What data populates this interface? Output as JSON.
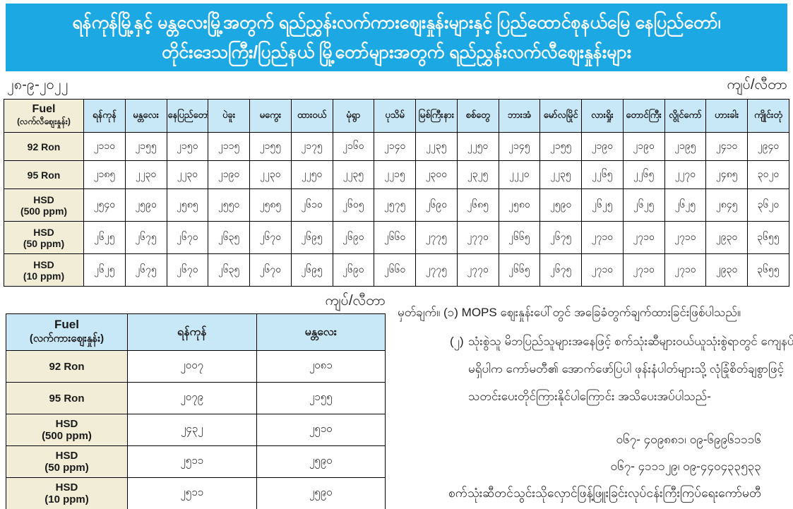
{
  "header": {
    "title_line1": "ရန်ကုန်မြို့နှင့် မန္တလေးမြို့အတွက် ရည်ညွှန်းလက်ကားဈေးနှုန်းများနှင့် ပြည်ထောင်စုနယ်မြေ နေပြည်တော်၊",
    "title_line2": "တိုင်းဒေသကြီး/ပြည်နယ် မြို့တော်များအတွက် ရည်ညွှန်းလက်လီဈေးနှုန်းများ",
    "date": "၂၈-၉-၂၀၂၂",
    "unit_label": "ကျပ်/လီတာ"
  },
  "retail_table": {
    "fuel_header": "Fuel",
    "fuel_subheader": "(လက်လီဈေးနှုန်း)",
    "cities": [
      "ရန်ကုန်",
      "မန္တလေး",
      "နေပြည်တော်",
      "ပဲခူး",
      "မကွေး",
      "ထားဝယ်",
      "မုံရွာ",
      "ပုသိမ်",
      "မြစ်ကြီးနား",
      "စစ်တွေ",
      "ဘားအံ",
      "မော်လမြိုင်",
      "လားရှိုး",
      "တောင်ကြီး",
      "လွိုင်ကော်",
      "ဟားခါး",
      "ကျိုင်းတုံ"
    ],
    "rows": [
      {
        "label": "92 Ron",
        "sublabel": "",
        "values": [
          "၂၁၁၀",
          "၂၁၅၅",
          "၂၁၅၀",
          "၂၁၁၅",
          "၂၁၅၅",
          "၂၁၇၅",
          "၂၁၆၀",
          "၂၁၄၀",
          "၂၂၃၅",
          "၂၂၅၀",
          "၂၁၄၅",
          "၂၁၅၅",
          "၂၁၉၀",
          "၂၁၉၀",
          "၂၁၉၅",
          "၂၄၁၀",
          "၂၉၄၀"
        ]
      },
      {
        "label": "95 Ron",
        "sublabel": "",
        "values": [
          "၂၁၈၅",
          "၂၂၃၀",
          "၂၂၃၀",
          "၂၁၉၀",
          "၂၂၃၀",
          "၂၂၅၀",
          "၂၂၃၅",
          "၂၂၁၅",
          "၂၃၀၀",
          "၂၃၂၅",
          "၂၂၂၀",
          "၂၂၃၅",
          "၂၂၆၅",
          "၂၂၆၅",
          "၂၂၇၀",
          "၂၄၈၅",
          "၃၀၂၀"
        ]
      },
      {
        "label": "HSD",
        "sublabel": "(500 ppm)",
        "values": [
          "၂၅၄၀",
          "၂၅၉၀",
          "၂၅၈၅",
          "၂၅၅၀",
          "၂၅၈၅",
          "၂၆၁၀",
          "၂၆၀၅",
          "၂၅၇၅",
          "၂၆၉၀",
          "၂၆၈၅",
          "၂၅၈၀",
          "၂၅၉၀",
          "၂၆၂၅",
          "၂၆၂၅",
          "၂၆၂၅",
          "၂၈၄၅",
          "၃၆၂၀"
        ]
      },
      {
        "label": "HSD",
        "sublabel": "(50 ppm)",
        "values": [
          "၂၆၂၅",
          "၂၆၇၅",
          "၂၆၇၀",
          "၂၆၃၅",
          "၂၆၇၀",
          "၂၆၉၅",
          "၂၆၉၀",
          "၂၆၆၀",
          "၂၇၇၅",
          "၂၇၇၀",
          "၂၆၆၅",
          "၂၆၇၅",
          "၂၇၁၀",
          "၂၇၁၀",
          "၂၇၁၀",
          "၂၉၃၀",
          "၃၆၅၅"
        ]
      },
      {
        "label": "HSD",
        "sublabel": "(10 ppm)",
        "values": [
          "၂၆၂၅",
          "၂၆၇၅",
          "၂၆၇၀",
          "၂၆၃၅",
          "၂၆၇၀",
          "၂၆၉၅",
          "၂၆၉၀",
          "၂၆၆၀",
          "၂၇၇၅",
          "၂၇၇၀",
          "၂၆၆၅",
          "၂၆၇၅",
          "၂၇၁၀",
          "၂၇၁၀",
          "၂၇၁၀",
          "၂၉၃၀",
          "၃၆၅၅"
        ]
      }
    ]
  },
  "wholesale_table": {
    "unit_label": "ကျပ်/လီတာ",
    "fuel_header": "Fuel",
    "fuel_subheader": "(လက်ကားဈေးနှုန်း)",
    "cities": [
      "ရန်ကုန်",
      "မန္တလေး"
    ],
    "rows": [
      {
        "label": "92 Ron",
        "sublabel": "",
        "values": [
          "၂၀၀၇",
          "၂၀၈၁"
        ]
      },
      {
        "label": "95 Ron",
        "sublabel": "",
        "values": [
          "၂၀၇၉",
          "၂၁၅၅"
        ]
      },
      {
        "label": "HSD",
        "sublabel": "(500 ppm)",
        "values": [
          "၂၄၃၂",
          "၂၅၁၀"
        ]
      },
      {
        "label": "HSD",
        "sublabel": "(50 ppm)",
        "values": [
          "၂၅၁၁",
          "၂၅၉၀"
        ]
      },
      {
        "label": "HSD",
        "sublabel": "(10 ppm)",
        "values": [
          "၂၅၁၁",
          "၂၅၉၀"
        ]
      }
    ]
  },
  "notes": {
    "prefix": "မှတ်ချက်။",
    "items": [
      {
        "num": "(၁)",
        "lines": [
          "MOPS ဈေးနှုန်းပေါ်တွင် အခြေခံတွက်ချက်ထားခြင်းဖြစ်ပါသည်။"
        ]
      },
      {
        "num": "(၂)",
        "lines": [
          "သုံးစွဲသူ မိဘပြည်သူများအနေဖြင့် စက်သုံးဆီများဝယ်ယူသုံးစွဲရာတွင် ကျေနပ်မှု",
          "မရှိပါက  ကော်မတီ၏ အောက်ဖော်ပြပါ ဖုန်းနံပါတ်များသို့ လုံခြုံစိတ်ချစွာဖြင့်",
          "သတင်းပေးတိုင်ကြားနိုင်ပါကြောင်း အသိပေးအပ်ပါသည်-"
        ]
      }
    ],
    "phones": [
      "၀၆၇- ၄၀၉၈၈၁၊ ၀၉-၆၉၉၆၁၁၁၆",
      "၀၆၇- ၄၁၁၁၂၉၊ ၀၉-၄၄၀၄၃၃၅၃၃"
    ],
    "committee": "စက်သုံးဆီတင်သွင်းသိုလှောင်ဖြန့်ဖြူးခြင်းလုပ်ငန်းကြီးကြပ်ရေးကော်မတီ"
  },
  "colors": {
    "banner_bg": "#1ba8e3",
    "banner_text": "#ffffff",
    "header_cell_blue": "#c9e8f7",
    "label_cell_beige": "#f1edd7",
    "border": "#000000"
  }
}
